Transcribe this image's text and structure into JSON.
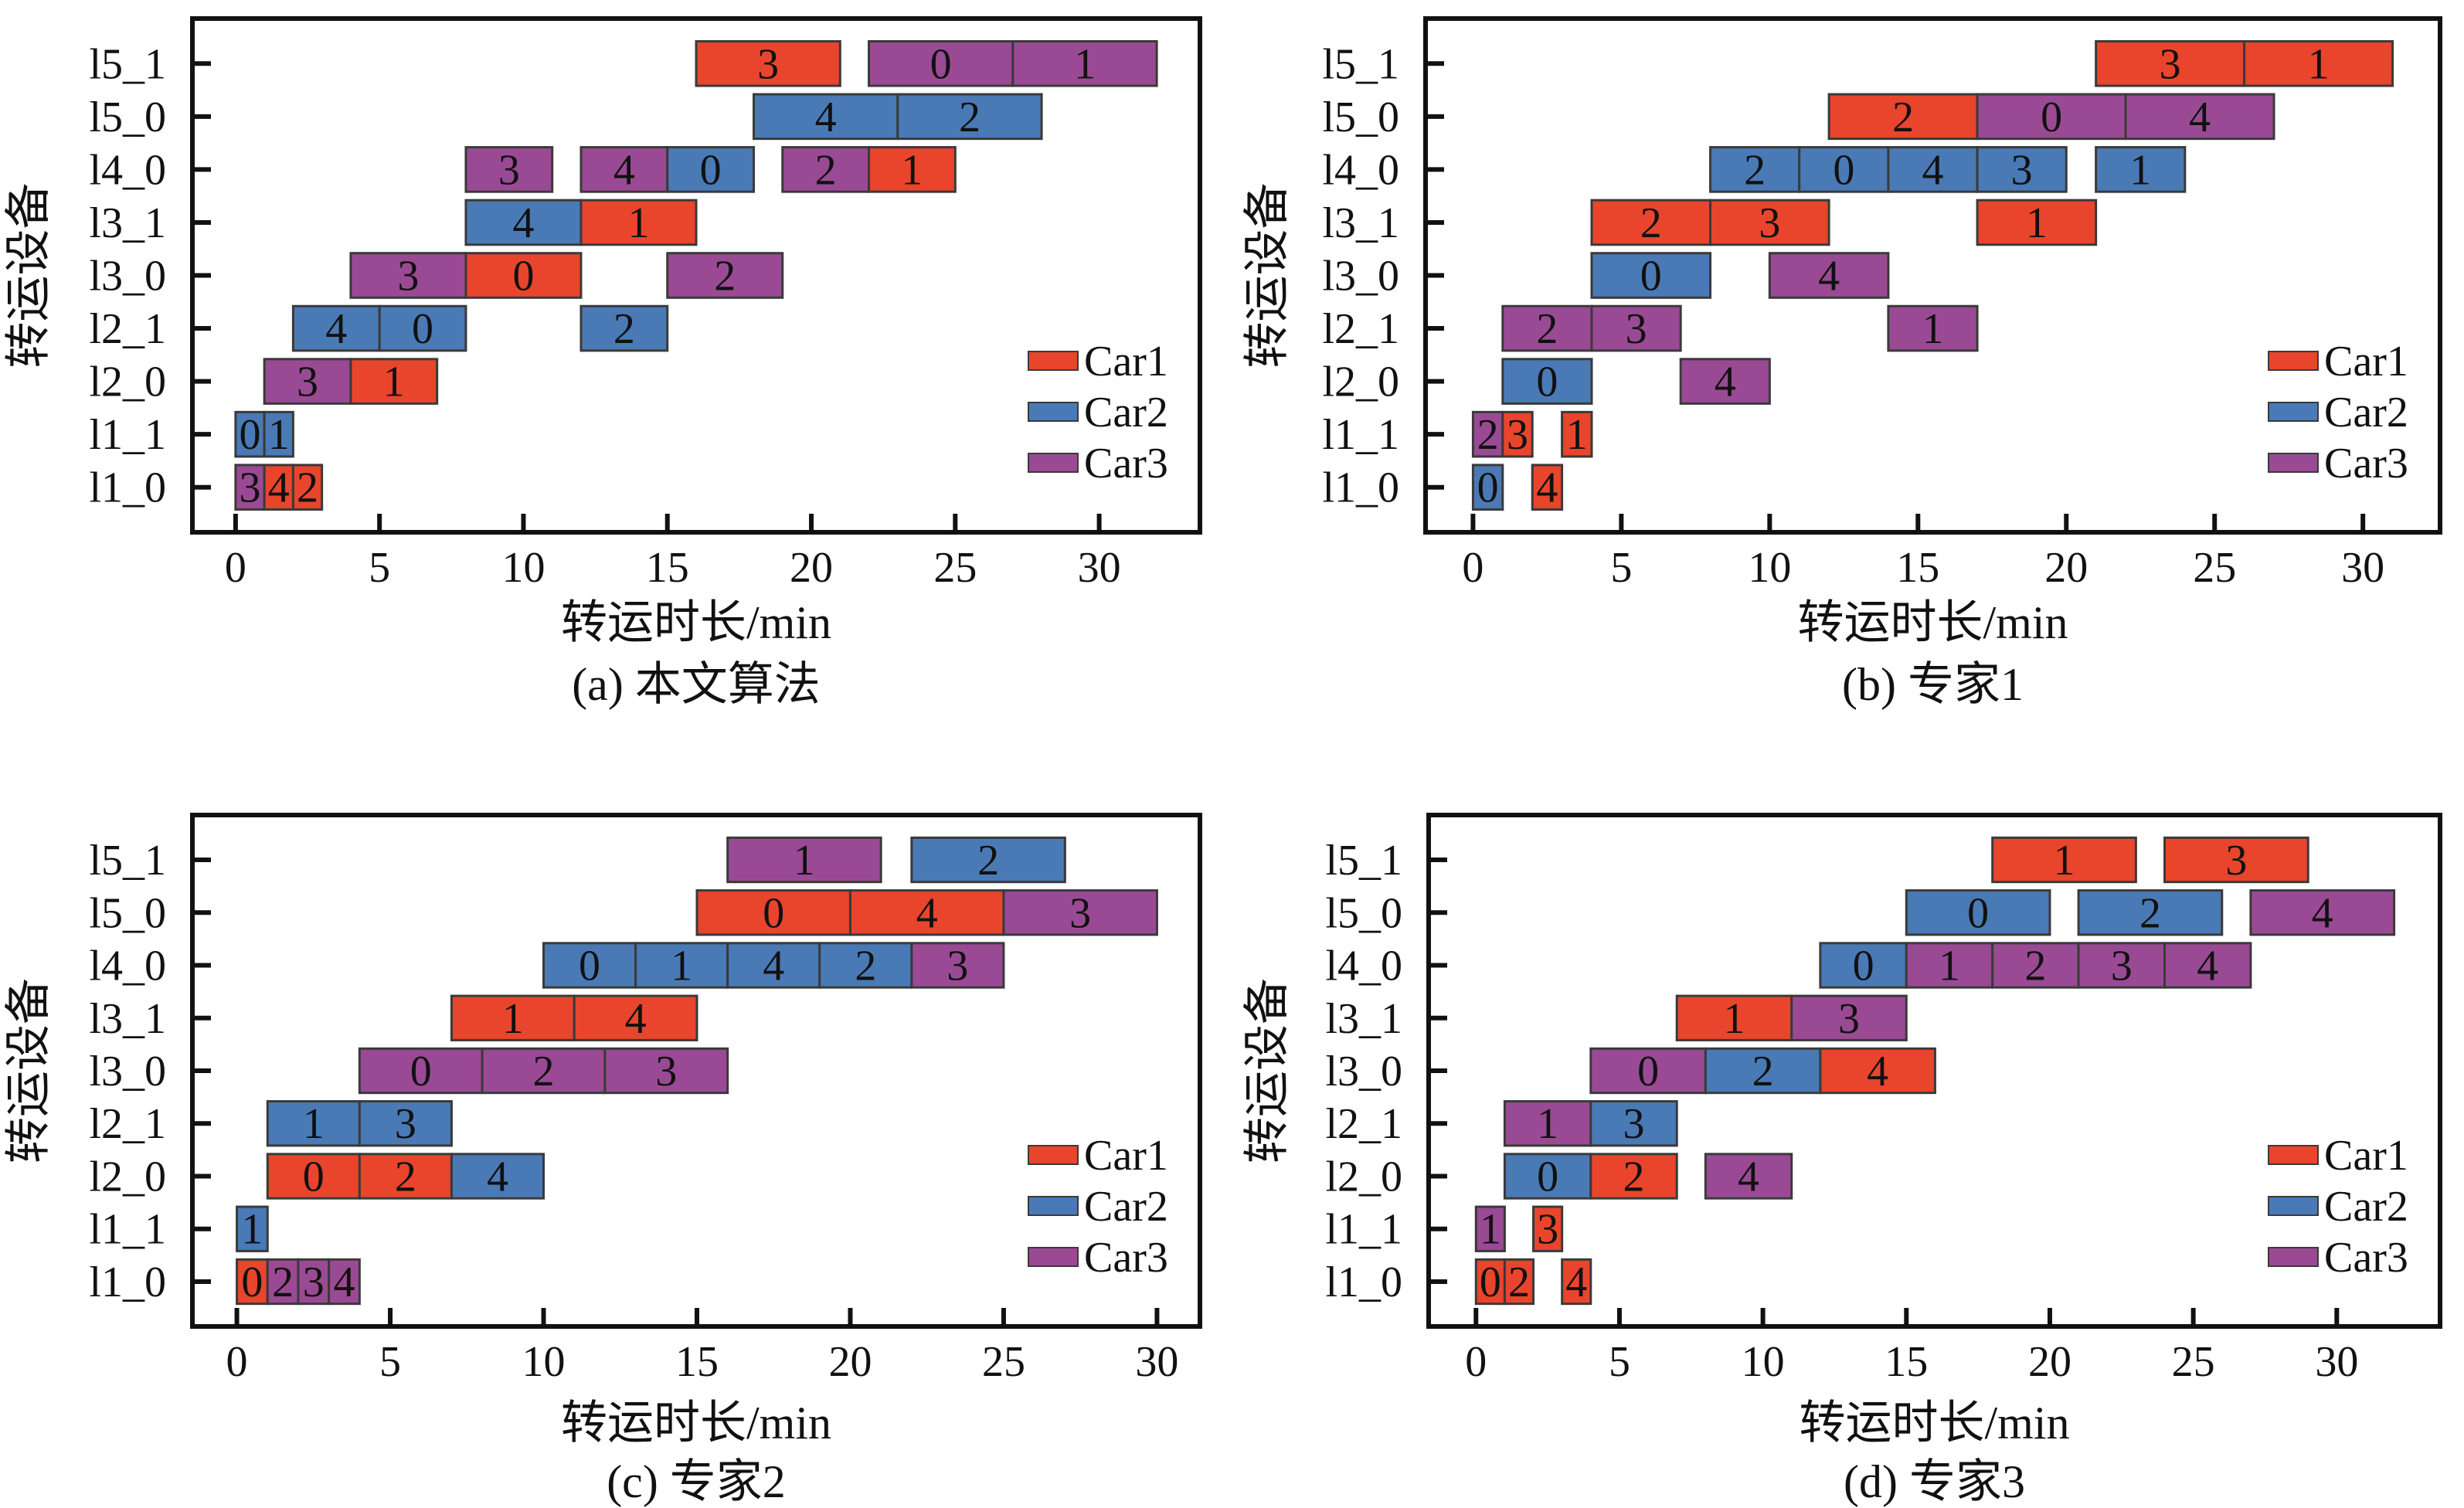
{
  "colors": {
    "Car1": "#e8452c",
    "Car2": "#4a7ab5",
    "Car3": "#9a4a94",
    "edge": "#3a3a3a"
  },
  "chart_data": [
    {
      "type": "bar",
      "orientation": "horizontal-gantt",
      "caption": "(a) 本文算法",
      "xlabel": "转运时长/min",
      "ylabel": "转运设备",
      "xlim": [
        -1.5,
        33.5
      ],
      "xticks": [
        0,
        5,
        10,
        15,
        20,
        25,
        30
      ],
      "categories": [
        "l1_0",
        "l1_1",
        "l2_0",
        "l2_1",
        "l3_0",
        "l3_1",
        "l4_0",
        "l5_0",
        "l5_1"
      ],
      "legend": [
        "Car1",
        "Car2",
        "Car3"
      ],
      "legend_position": "bottom-right",
      "tasks": [
        {
          "row": "l5_1",
          "car": "Car1",
          "label": "3",
          "start": 16,
          "end": 21
        },
        {
          "row": "l5_1",
          "car": "Car3",
          "label": "0",
          "start": 22,
          "end": 27
        },
        {
          "row": "l5_1",
          "car": "Car3",
          "label": "1",
          "start": 27,
          "end": 32
        },
        {
          "row": "l5_0",
          "car": "Car2",
          "label": "4",
          "start": 18,
          "end": 23
        },
        {
          "row": "l5_0",
          "car": "Car2",
          "label": "2",
          "start": 23,
          "end": 28
        },
        {
          "row": "l4_0",
          "car": "Car3",
          "label": "3",
          "start": 8,
          "end": 11
        },
        {
          "row": "l4_0",
          "car": "Car3",
          "label": "4",
          "start": 12,
          "end": 15
        },
        {
          "row": "l4_0",
          "car": "Car2",
          "label": "0",
          "start": 15,
          "end": 18
        },
        {
          "row": "l4_0",
          "car": "Car3",
          "label": "2",
          "start": 19,
          "end": 22
        },
        {
          "row": "l4_0",
          "car": "Car1",
          "label": "1",
          "start": 22,
          "end": 25
        },
        {
          "row": "l3_1",
          "car": "Car2",
          "label": "4",
          "start": 8,
          "end": 12
        },
        {
          "row": "l3_1",
          "car": "Car1",
          "label": "1",
          "start": 12,
          "end": 16
        },
        {
          "row": "l3_0",
          "car": "Car3",
          "label": "3",
          "start": 4,
          "end": 8
        },
        {
          "row": "l3_0",
          "car": "Car1",
          "label": "0",
          "start": 8,
          "end": 12
        },
        {
          "row": "l3_0",
          "car": "Car3",
          "label": "2",
          "start": 15,
          "end": 19
        },
        {
          "row": "l2_1",
          "car": "Car2",
          "label": "4",
          "start": 2,
          "end": 5
        },
        {
          "row": "l2_1",
          "car": "Car2",
          "label": "0",
          "start": 5,
          "end": 8
        },
        {
          "row": "l2_1",
          "car": "Car2",
          "label": "2",
          "start": 12,
          "end": 15
        },
        {
          "row": "l2_0",
          "car": "Car3",
          "label": "3",
          "start": 1,
          "end": 4
        },
        {
          "row": "l2_0",
          "car": "Car1",
          "label": "1",
          "start": 4,
          "end": 7
        },
        {
          "row": "l1_1",
          "car": "Car2",
          "label": "0",
          "start": 0,
          "end": 1
        },
        {
          "row": "l1_1",
          "car": "Car2",
          "label": "1",
          "start": 1,
          "end": 2
        },
        {
          "row": "l1_0",
          "car": "Car3",
          "label": "3",
          "start": 0,
          "end": 1
        },
        {
          "row": "l1_0",
          "car": "Car1",
          "label": "4",
          "start": 1,
          "end": 2
        },
        {
          "row": "l1_0",
          "car": "Car1",
          "label": "2",
          "start": 2,
          "end": 3
        }
      ]
    },
    {
      "type": "bar",
      "orientation": "horizontal-gantt",
      "caption": "(b) 专家1",
      "xlabel": "转运时长/min",
      "ylabel": "转运设备",
      "xlim": [
        -1.6,
        32.6
      ],
      "xticks": [
        0,
        5,
        10,
        15,
        20,
        25,
        30
      ],
      "categories": [
        "l1_0",
        "l1_1",
        "l2_0",
        "l2_1",
        "l3_0",
        "l3_1",
        "l4_0",
        "l5_0",
        "l5_1"
      ],
      "legend": [
        "Car1",
        "Car2",
        "Car3"
      ],
      "legend_position": "bottom-right",
      "tasks": [
        {
          "row": "l5_1",
          "car": "Car1",
          "label": "3",
          "start": 21,
          "end": 26
        },
        {
          "row": "l5_1",
          "car": "Car1",
          "label": "1",
          "start": 26,
          "end": 31
        },
        {
          "row": "l5_0",
          "car": "Car1",
          "label": "2",
          "start": 12,
          "end": 17
        },
        {
          "row": "l5_0",
          "car": "Car3",
          "label": "0",
          "start": 17,
          "end": 22
        },
        {
          "row": "l5_0",
          "car": "Car3",
          "label": "4",
          "start": 22,
          "end": 27
        },
        {
          "row": "l4_0",
          "car": "Car2",
          "label": "2",
          "start": 8,
          "end": 11
        },
        {
          "row": "l4_0",
          "car": "Car2",
          "label": "0",
          "start": 11,
          "end": 14
        },
        {
          "row": "l4_0",
          "car": "Car2",
          "label": "4",
          "start": 14,
          "end": 17
        },
        {
          "row": "l4_0",
          "car": "Car2",
          "label": "3",
          "start": 17,
          "end": 20
        },
        {
          "row": "l4_0",
          "car": "Car2",
          "label": "1",
          "start": 21,
          "end": 24
        },
        {
          "row": "l3_1",
          "car": "Car1",
          "label": "2",
          "start": 4,
          "end": 8
        },
        {
          "row": "l3_1",
          "car": "Car1",
          "label": "3",
          "start": 8,
          "end": 12
        },
        {
          "row": "l3_1",
          "car": "Car1",
          "label": "1",
          "start": 17,
          "end": 21
        },
        {
          "row": "l3_0",
          "car": "Car2",
          "label": "0",
          "start": 4,
          "end": 8
        },
        {
          "row": "l3_0",
          "car": "Car3",
          "label": "4",
          "start": 10,
          "end": 14
        },
        {
          "row": "l2_1",
          "car": "Car3",
          "label": "2",
          "start": 1,
          "end": 4
        },
        {
          "row": "l2_1",
          "car": "Car3",
          "label": "3",
          "start": 4,
          "end": 7
        },
        {
          "row": "l2_1",
          "car": "Car3",
          "label": "1",
          "start": 14,
          "end": 17
        },
        {
          "row": "l2_0",
          "car": "Car2",
          "label": "0",
          "start": 1,
          "end": 4
        },
        {
          "row": "l2_0",
          "car": "Car3",
          "label": "4",
          "start": 7,
          "end": 10
        },
        {
          "row": "l1_1",
          "car": "Car3",
          "label": "2",
          "start": 0,
          "end": 1
        },
        {
          "row": "l1_1",
          "car": "Car1",
          "label": "3",
          "start": 1,
          "end": 2
        },
        {
          "row": "l1_1",
          "car": "Car1",
          "label": "1",
          "start": 3,
          "end": 4
        },
        {
          "row": "l1_0",
          "car": "Car2",
          "label": "0",
          "start": 0,
          "end": 1
        },
        {
          "row": "l1_0",
          "car": "Car1",
          "label": "4",
          "start": 2,
          "end": 3
        }
      ]
    },
    {
      "type": "bar",
      "orientation": "horizontal-gantt",
      "caption": "(c) 专家2",
      "xlabel": "转运时长/min",
      "ylabel": "转运设备",
      "xlim": [
        -1.45,
        31.4
      ],
      "xticks": [
        0,
        5,
        10,
        15,
        20,
        25,
        30
      ],
      "categories": [
        "l1_0",
        "l1_1",
        "l2_0",
        "l2_1",
        "l3_0",
        "l3_1",
        "l4_0",
        "l5_0",
        "l5_1"
      ],
      "legend": [
        "Car1",
        "Car2",
        "Car3"
      ],
      "legend_position": "bottom-right",
      "tasks": [
        {
          "row": "l5_1",
          "car": "Car3",
          "label": "1",
          "start": 16,
          "end": 21
        },
        {
          "row": "l5_1",
          "car": "Car2",
          "label": "2",
          "start": 22,
          "end": 27
        },
        {
          "row": "l5_0",
          "car": "Car1",
          "label": "0",
          "start": 15,
          "end": 20
        },
        {
          "row": "l5_0",
          "car": "Car1",
          "label": "4",
          "start": 20,
          "end": 25
        },
        {
          "row": "l5_0",
          "car": "Car3",
          "label": "3",
          "start": 25,
          "end": 30
        },
        {
          "row": "l4_0",
          "car": "Car2",
          "label": "0",
          "start": 10,
          "end": 13
        },
        {
          "row": "l4_0",
          "car": "Car2",
          "label": "1",
          "start": 13,
          "end": 16
        },
        {
          "row": "l4_0",
          "car": "Car2",
          "label": "4",
          "start": 16,
          "end": 19
        },
        {
          "row": "l4_0",
          "car": "Car2",
          "label": "2",
          "start": 19,
          "end": 22
        },
        {
          "row": "l4_0",
          "car": "Car3",
          "label": "3",
          "start": 22,
          "end": 25
        },
        {
          "row": "l3_1",
          "car": "Car1",
          "label": "1",
          "start": 7,
          "end": 11
        },
        {
          "row": "l3_1",
          "car": "Car1",
          "label": "4",
          "start": 11,
          "end": 15
        },
        {
          "row": "l3_0",
          "car": "Car3",
          "label": "0",
          "start": 4,
          "end": 8
        },
        {
          "row": "l3_0",
          "car": "Car3",
          "label": "2",
          "start": 8,
          "end": 12
        },
        {
          "row": "l3_0",
          "car": "Car3",
          "label": "3",
          "start": 12,
          "end": 16
        },
        {
          "row": "l2_1",
          "car": "Car2",
          "label": "1",
          "start": 1,
          "end": 4
        },
        {
          "row": "l2_1",
          "car": "Car2",
          "label": "3",
          "start": 4,
          "end": 7
        },
        {
          "row": "l2_0",
          "car": "Car1",
          "label": "0",
          "start": 1,
          "end": 4
        },
        {
          "row": "l2_0",
          "car": "Car1",
          "label": "2",
          "start": 4,
          "end": 7
        },
        {
          "row": "l2_0",
          "car": "Car2",
          "label": "4",
          "start": 7,
          "end": 10
        },
        {
          "row": "l1_1",
          "car": "Car2",
          "label": "1",
          "start": 0,
          "end": 1
        },
        {
          "row": "l1_0",
          "car": "Car1",
          "label": "0",
          "start": 0,
          "end": 1
        },
        {
          "row": "l1_0",
          "car": "Car3",
          "label": "2",
          "start": 1,
          "end": 2
        },
        {
          "row": "l1_0",
          "car": "Car3",
          "label": "3",
          "start": 2,
          "end": 3
        },
        {
          "row": "l1_0",
          "car": "Car3",
          "label": "4",
          "start": 3,
          "end": 4
        }
      ]
    },
    {
      "type": "bar",
      "orientation": "horizontal-gantt",
      "caption": "(d) 专家3",
      "xlabel": "转运时长/min",
      "ylabel": "转运设备",
      "xlim": [
        -1.65,
        33.6
      ],
      "xticks": [
        0,
        5,
        10,
        15,
        20,
        25,
        30
      ],
      "categories": [
        "l1_0",
        "l1_1",
        "l2_0",
        "l2_1",
        "l3_0",
        "l3_1",
        "l4_0",
        "l5_0",
        "l5_1"
      ],
      "legend": [
        "Car1",
        "Car2",
        "Car3"
      ],
      "legend_position": "bottom-right",
      "tasks": [
        {
          "row": "l5_1",
          "car": "Car1",
          "label": "1",
          "start": 18,
          "end": 23
        },
        {
          "row": "l5_1",
          "car": "Car1",
          "label": "3",
          "start": 24,
          "end": 29
        },
        {
          "row": "l5_0",
          "car": "Car2",
          "label": "0",
          "start": 15,
          "end": 20
        },
        {
          "row": "l5_0",
          "car": "Car2",
          "label": "2",
          "start": 21,
          "end": 26
        },
        {
          "row": "l5_0",
          "car": "Car3",
          "label": "4",
          "start": 27,
          "end": 32
        },
        {
          "row": "l4_0",
          "car": "Car2",
          "label": "0",
          "start": 12,
          "end": 15
        },
        {
          "row": "l4_0",
          "car": "Car3",
          "label": "1",
          "start": 15,
          "end": 18
        },
        {
          "row": "l4_0",
          "car": "Car3",
          "label": "2",
          "start": 18,
          "end": 21
        },
        {
          "row": "l4_0",
          "car": "Car3",
          "label": "3",
          "start": 21,
          "end": 24
        },
        {
          "row": "l4_0",
          "car": "Car3",
          "label": "4",
          "start": 24,
          "end": 27
        },
        {
          "row": "l3_1",
          "car": "Car1",
          "label": "1",
          "start": 7,
          "end": 11
        },
        {
          "row": "l3_1",
          "car": "Car3",
          "label": "3",
          "start": 11,
          "end": 15
        },
        {
          "row": "l3_0",
          "car": "Car3",
          "label": "0",
          "start": 4,
          "end": 8
        },
        {
          "row": "l3_0",
          "car": "Car2",
          "label": "2",
          "start": 8,
          "end": 12
        },
        {
          "row": "l3_0",
          "car": "Car1",
          "label": "4",
          "start": 12,
          "end": 16
        },
        {
          "row": "l2_1",
          "car": "Car3",
          "label": "1",
          "start": 1,
          "end": 4
        },
        {
          "row": "l2_1",
          "car": "Car2",
          "label": "3",
          "start": 4,
          "end": 7
        },
        {
          "row": "l2_0",
          "car": "Car2",
          "label": "0",
          "start": 1,
          "end": 4
        },
        {
          "row": "l2_0",
          "car": "Car1",
          "label": "2",
          "start": 4,
          "end": 7
        },
        {
          "row": "l2_0",
          "car": "Car3",
          "label": "4",
          "start": 8,
          "end": 11
        },
        {
          "row": "l1_1",
          "car": "Car3",
          "label": "1",
          "start": 0,
          "end": 1
        },
        {
          "row": "l1_1",
          "car": "Car1",
          "label": "3",
          "start": 2,
          "end": 3
        },
        {
          "row": "l1_0",
          "car": "Car1",
          "label": "0",
          "start": 0,
          "end": 1
        },
        {
          "row": "l1_0",
          "car": "Car1",
          "label": "2",
          "start": 1,
          "end": 2
        },
        {
          "row": "l1_0",
          "car": "Car1",
          "label": "4",
          "start": 3,
          "end": 4
        }
      ]
    }
  ]
}
